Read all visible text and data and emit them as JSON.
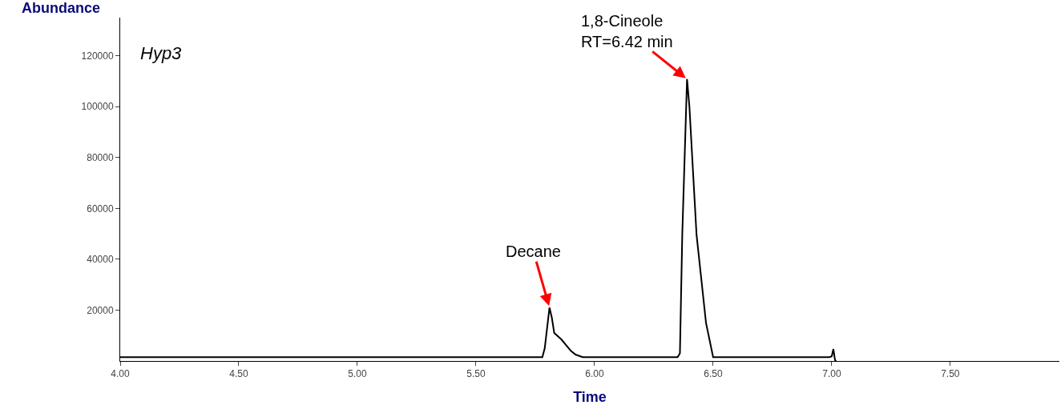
{
  "chart_data": {
    "type": "line",
    "xlabel": "Time",
    "ylabel": "Abundance",
    "x": [
      4.0,
      4.5,
      5.0,
      5.5,
      5.78,
      5.79,
      5.81,
      5.82,
      5.83,
      5.86,
      5.9,
      5.92,
      5.95,
      6.2,
      6.35,
      6.36,
      6.37,
      6.39,
      6.4,
      6.43,
      6.47,
      6.5,
      6.8,
      6.99,
      7.0,
      7.007,
      7.012,
      7.015,
      7.02
    ],
    "series": [
      {
        "color": "#000000",
        "values": [
          1500,
          1500,
          1500,
          1500,
          1500,
          5000,
          21000,
          17000,
          11000,
          8500,
          4000,
          2500,
          1500,
          1500,
          1500,
          3000,
          50000,
          110800,
          100000,
          49700,
          15000,
          1500,
          1500,
          1500,
          1800,
          4700,
          1500,
          0,
          0
        ]
      }
    ],
    "xlim": [
      4.0,
      7.96
    ],
    "xticks": [
      {
        "value": 4.0,
        "label": "4.00"
      },
      {
        "value": 4.5,
        "label": "4.50"
      },
      {
        "value": 5.0,
        "label": "5.00"
      },
      {
        "value": 5.5,
        "label": "5.50"
      },
      {
        "value": 6.0,
        "label": "6.00"
      },
      {
        "value": 6.5,
        "label": "6.50"
      },
      {
        "value": 7.0,
        "label": "7.00"
      },
      {
        "value": 7.5,
        "label": "7.50"
      }
    ],
    "ylim": [
      0,
      135000
    ],
    "yticks": [
      20000,
      40000,
      60000,
      80000,
      100000,
      120000
    ],
    "annotations": [
      "Hyp3",
      {
        "text": "Decane",
        "x": 5.81,
        "y": 21000
      },
      {
        "text": "1,8-Cineole\nRT=6.42 min",
        "x": 6.39,
        "y": 110800
      }
    ],
    "marker": "none",
    "line_style": "solid",
    "legend": false
  }
}
